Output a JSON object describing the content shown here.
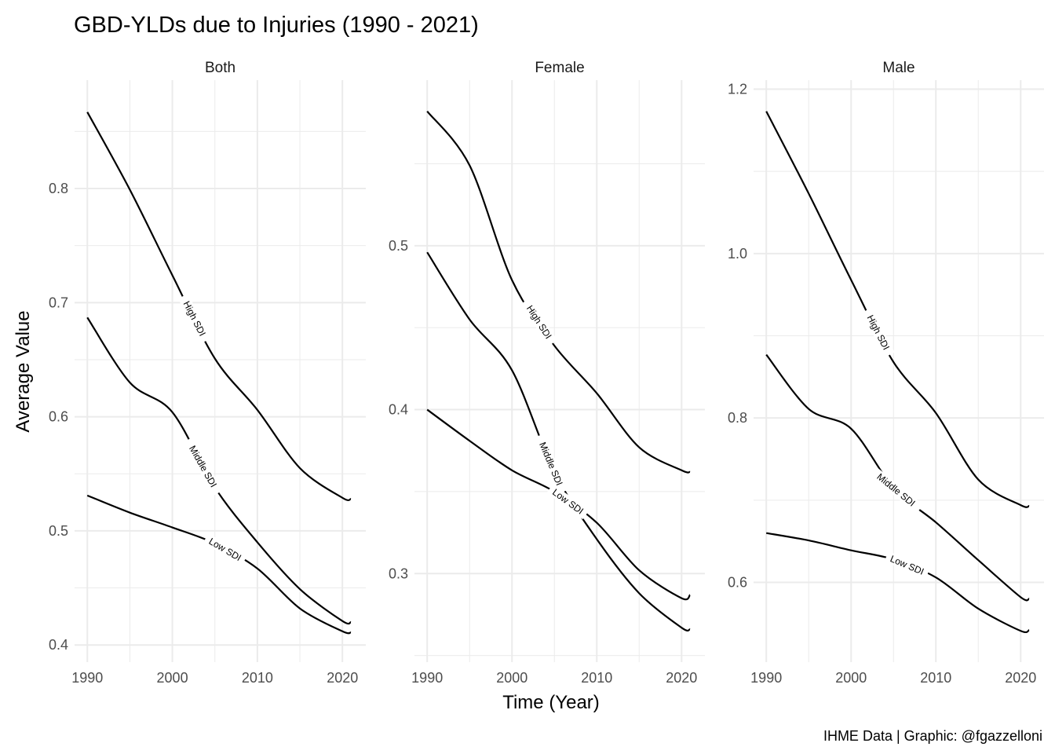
{
  "chart_data": {
    "type": "line",
    "title": "GBD-YLDs due to Injuries (1990 - 2021)",
    "xlabel": "Time (Year)",
    "ylabel": "Average Value",
    "caption": "IHME Data | Graphic: @fgazzelloni",
    "grid": true,
    "legend": "none",
    "x": [
      1990,
      1995,
      2000,
      2005,
      2010,
      2015,
      2020,
      2021
    ],
    "x_ticks": [
      1990,
      2000,
      2010,
      2020
    ],
    "x_tick_labels": [
      "1990",
      "2000",
      "2010",
      "2020"
    ],
    "panels": [
      {
        "name": "Both",
        "ylim": [
          0.385,
          0.895
        ],
        "y_ticks": [
          0.4,
          0.5,
          0.6,
          0.7,
          0.8
        ],
        "y_tick_labels": [
          "0.4",
          "0.5",
          "0.6",
          "0.7",
          "0.8"
        ],
        "series": [
          {
            "name": "High SDI",
            "values": [
              0.867,
              0.799,
              0.724,
              0.651,
              0.606,
              0.555,
              0.529,
              0.528
            ]
          },
          {
            "name": "Middle SDI",
            "values": [
              0.687,
              0.63,
              0.604,
              0.538,
              0.49,
              0.449,
              0.421,
              0.42
            ]
          },
          {
            "name": "Low SDI",
            "values": [
              0.531,
              0.516,
              0.503,
              0.489,
              0.467,
              0.432,
              0.412,
              0.411
            ]
          }
        ]
      },
      {
        "name": "Female",
        "ylim": [
          0.246,
          0.601
        ],
        "y_ticks": [
          0.3,
          0.4,
          0.5
        ],
        "y_tick_labels": [
          "0.3",
          "0.4",
          "0.5"
        ],
        "series": [
          {
            "name": "High SDI",
            "values": [
              0.582,
              0.549,
              0.479,
              0.439,
              0.41,
              0.377,
              0.363,
              0.362
            ]
          },
          {
            "name": "Middle SDI",
            "values": [
              0.496,
              0.455,
              0.424,
              0.362,
              0.321,
              0.288,
              0.267,
              0.266
            ]
          },
          {
            "name": "Low SDI",
            "values": [
              0.4,
              0.381,
              0.363,
              0.35,
              0.331,
              0.302,
              0.285,
              0.287
            ]
          }
        ]
      },
      {
        "name": "Male",
        "ylim": [
          0.503,
          1.211
        ],
        "y_ticks": [
          0.6,
          0.8,
          1.0,
          1.2
        ],
        "y_tick_labels": [
          "0.6",
          "0.8",
          "1.0",
          "1.2"
        ],
        "series": [
          {
            "name": "High SDI",
            "values": [
              1.173,
              1.073,
              0.968,
              0.868,
              0.806,
              0.725,
              0.694,
              0.693
            ]
          },
          {
            "name": "Middle SDI",
            "values": [
              0.877,
              0.811,
              0.787,
              0.715,
              0.673,
              0.627,
              0.582,
              0.58
            ]
          },
          {
            "name": "Low SDI",
            "values": [
              0.66,
              0.651,
              0.639,
              0.628,
              0.606,
              0.568,
              0.541,
              0.542
            ]
          }
        ]
      }
    ],
    "colors": {
      "line": "#000000",
      "grid": "#ebebeb"
    }
  }
}
